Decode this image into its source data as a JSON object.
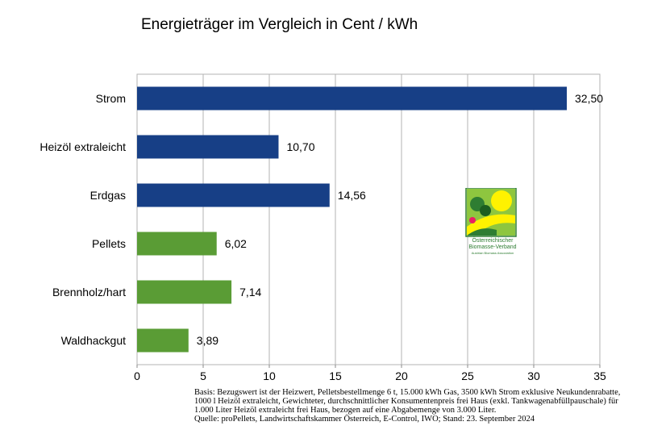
{
  "chart_data": {
    "type": "bar",
    "orientation": "horizontal",
    "title": "Energieträger im Vergleich in Cent / kWh",
    "categories": [
      "Strom",
      "Heizöl extraleicht",
      "Erdgas",
      "Pellets",
      "Brennholz/hart",
      "Waldhackgut"
    ],
    "values": [
      32.5,
      10.7,
      14.56,
      6.02,
      7.14,
      3.89
    ],
    "value_labels": [
      "32,50",
      "10,70",
      "14,56",
      "6,02",
      "7,14",
      "3,89"
    ],
    "bar_colors": [
      "#173f86",
      "#173f86",
      "#173f86",
      "#5a9c35",
      "#5a9c35",
      "#5a9c35"
    ],
    "xlim": [
      0,
      35
    ],
    "xticks": [
      0,
      5,
      10,
      15,
      20,
      25,
      30,
      35
    ],
    "xtick_labels": [
      "0",
      "5",
      "10",
      "15",
      "20",
      "25",
      "30",
      "35"
    ],
    "xlabel": "",
    "ylabel": "",
    "grid": true
  },
  "logo": {
    "line1": "Österreichischer",
    "line2": "Biomasse-Verband",
    "line3": "Austrian Biomass Association"
  },
  "notes": {
    "basis": "Basis: Bezugswert ist der Heizwert, Pelletsbestellmenge 6 t, 15.000 kWh Gas, 3500 kWh Strom exklusive Neukundenrabatte, 1000 l Heizöl extraleicht, Gewichteter, durchschnittlicher Konsumentenpreis frei Haus (exkl. Tankwagenabfüllpauschale) für 1.000 Liter Heizöl extraleicht frei Haus, bezogen auf eine Abgabemenge von 3.000 Liter.",
    "source": "Quelle: proPellets, Landwirtschaftskammer Österreich, E-Control, IWO; Stand: 23. September 2024"
  },
  "colors": {
    "fossil": "#173f86",
    "renewable": "#5a9c35",
    "grid": "#b3b3b3"
  }
}
